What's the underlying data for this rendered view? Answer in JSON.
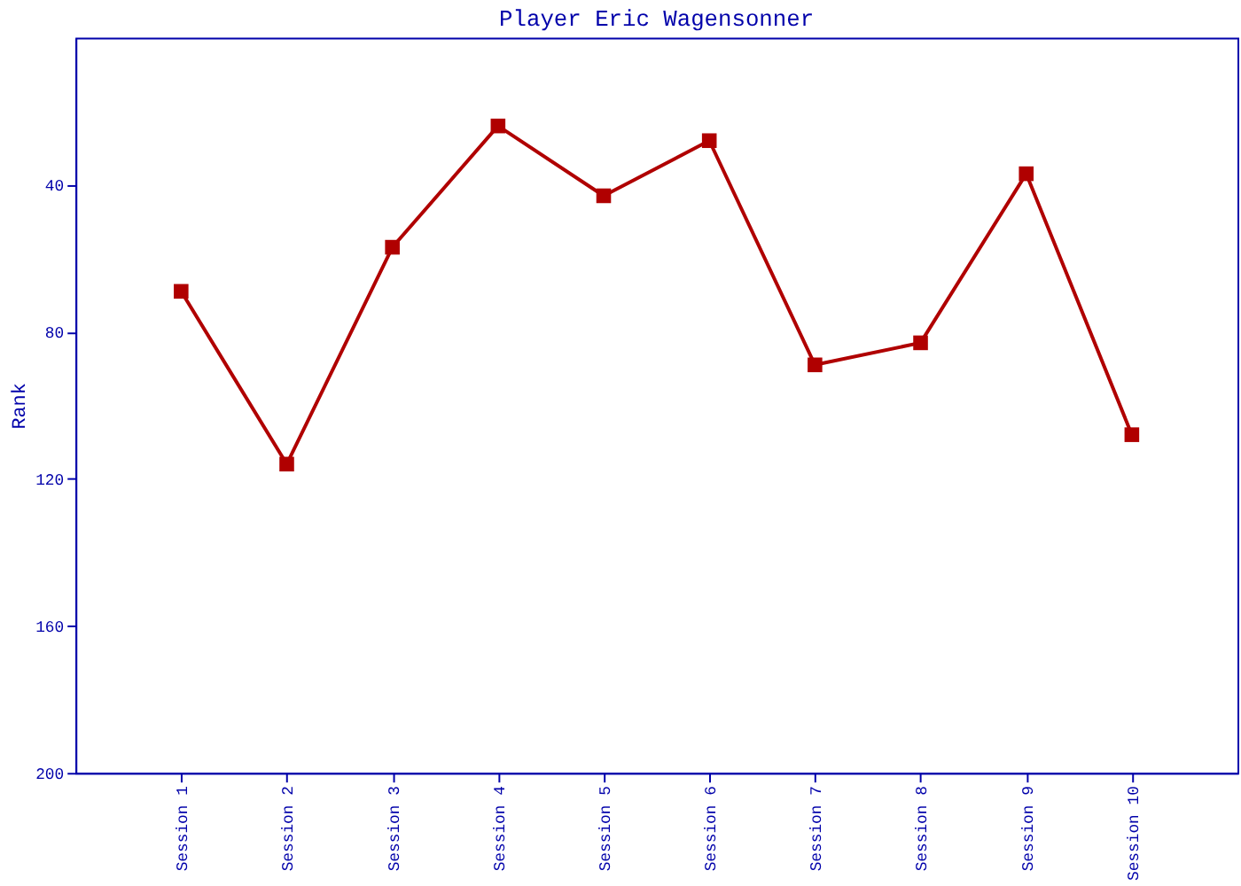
{
  "chart_data": {
    "type": "line",
    "title": "Player Eric Wagensonner",
    "ylabel": "Rank",
    "categories": [
      "Session 1",
      "Session 2",
      "Session 3",
      "Session 4",
      "Session 5",
      "Session 6",
      "Session 7",
      "Session 8",
      "Session 9",
      "Session 10"
    ],
    "series": [
      {
        "color": "#b00000",
        "values": [
          69,
          116,
          57,
          24,
          43,
          28,
          89,
          83,
          37,
          108
        ]
      }
    ],
    "ylim": [
      200,
      0
    ],
    "yticks": [
      40,
      80,
      120,
      160,
      200
    ],
    "grid": false,
    "marker": "square",
    "line_style": "solid"
  }
}
